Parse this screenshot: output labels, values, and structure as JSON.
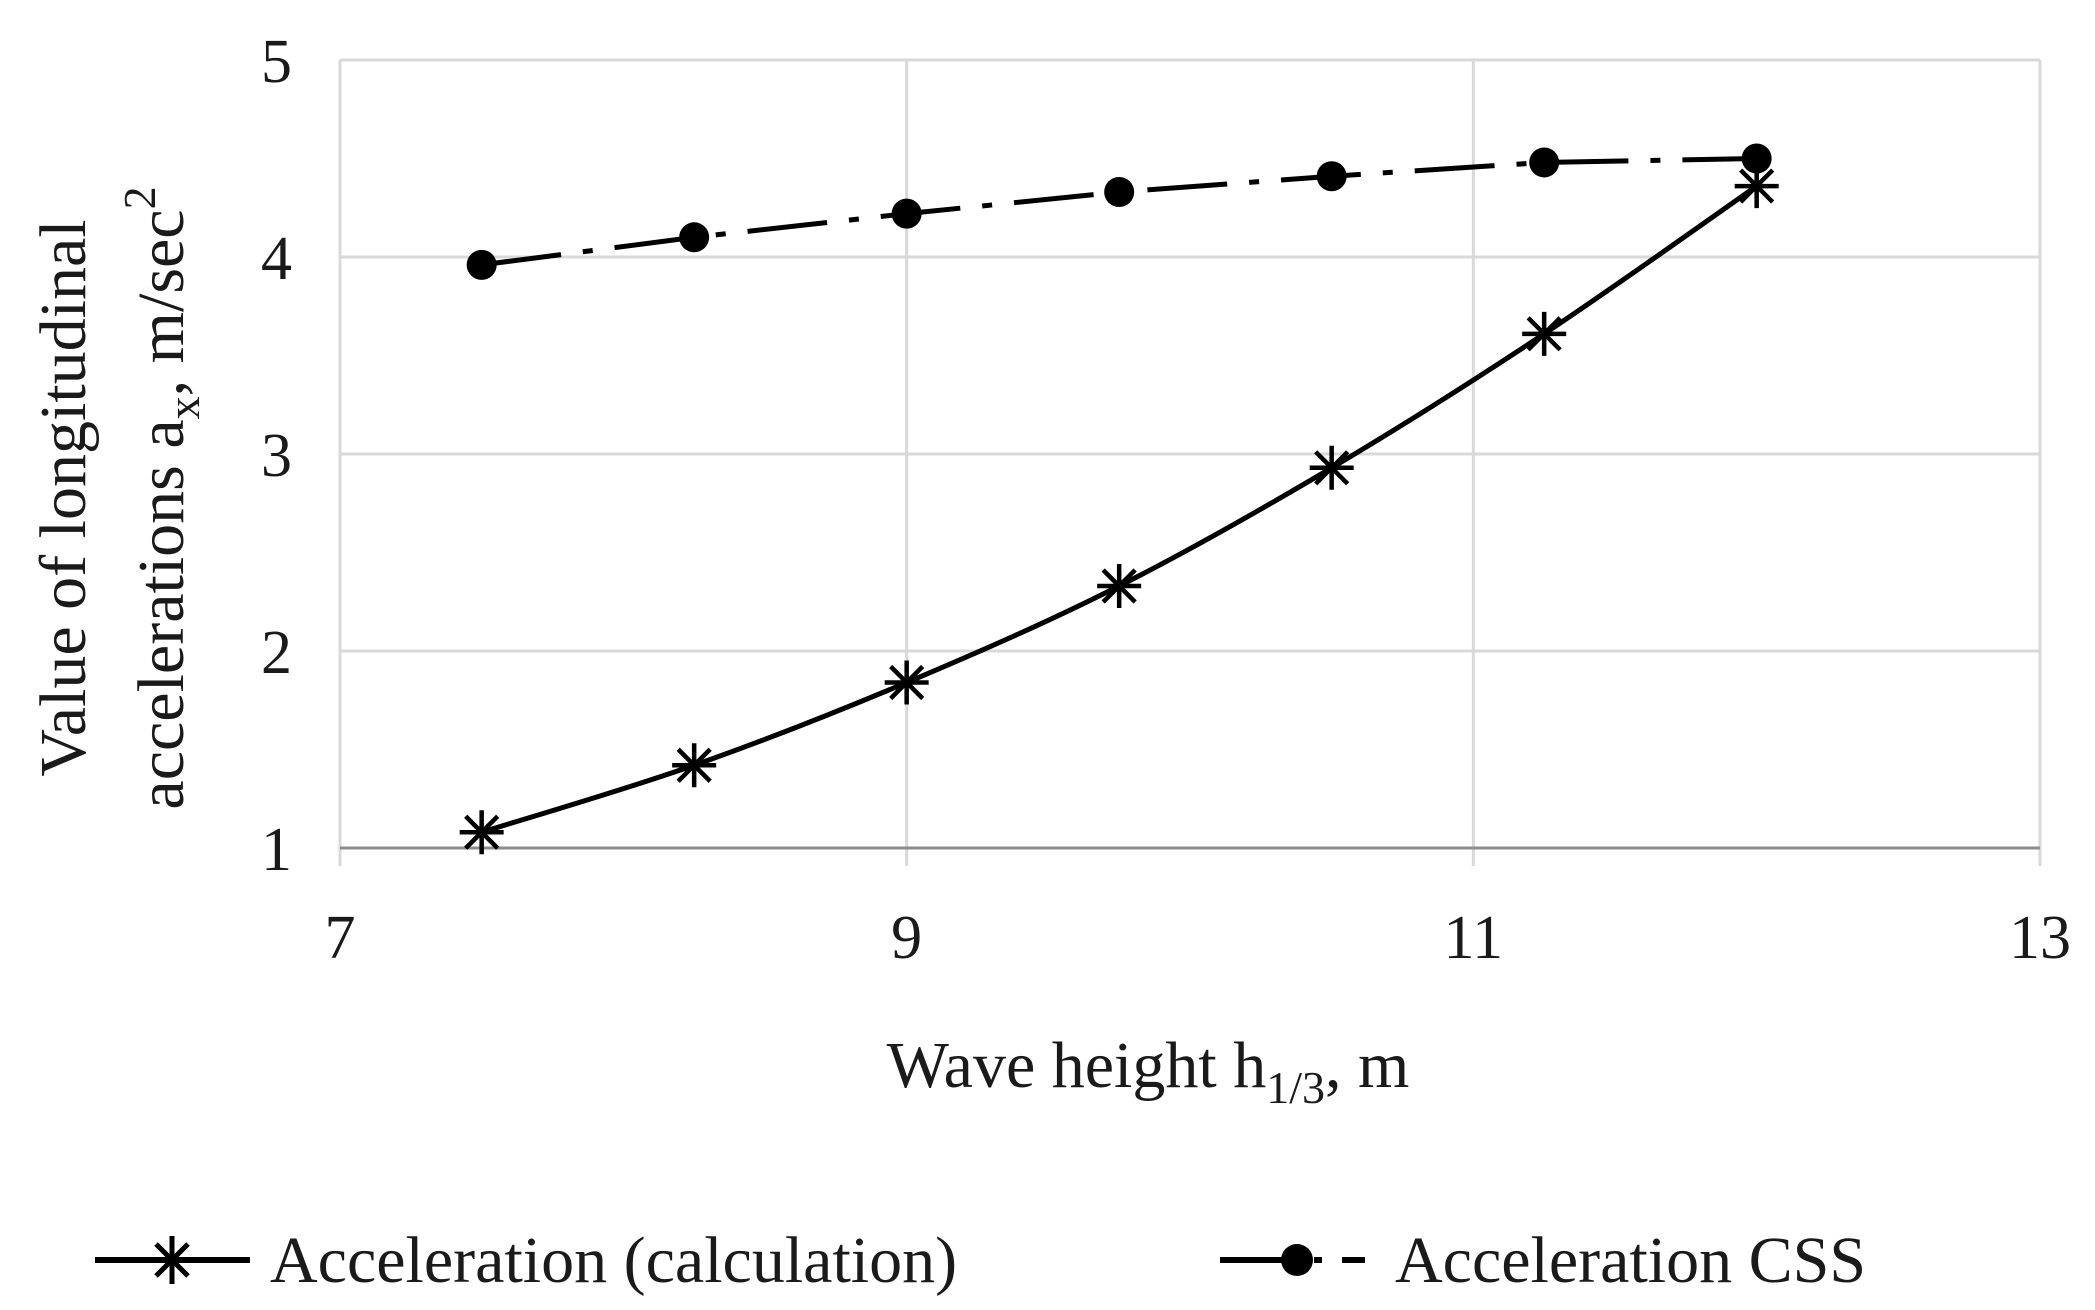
{
  "chart_data": {
    "type": "line",
    "title": "",
    "xlabel": {
      "main": "Wave height h",
      "sub": "1/3",
      "suffix": ", m"
    },
    "ylabel": {
      "line1": "Value of longitudinal",
      "line2_prefix": "accelerations a",
      "line2_sub": "x",
      "line2_mid": ", m/sec",
      "line2_sup": "2"
    },
    "xlim": [
      7,
      13
    ],
    "ylim": [
      1,
      5
    ],
    "xticks": [
      7,
      9,
      11,
      13
    ],
    "yticks": [
      1,
      2,
      3,
      4,
      5
    ],
    "grid": true,
    "legend_position": "bottom",
    "series": [
      {
        "name": "Acceleration (calculation)",
        "marker": "asterisk",
        "line_style": "solid",
        "smooth": true,
        "color": "#000000",
        "x": [
          7.5,
          8.25,
          9.0,
          9.75,
          10.5,
          11.25,
          12.0
        ],
        "y": [
          1.08,
          1.42,
          1.84,
          2.33,
          2.93,
          3.61,
          4.36
        ]
      },
      {
        "name": "Acceleration CSS",
        "marker": "circle",
        "line_style": "dash-dot",
        "smooth": false,
        "color": "#000000",
        "x": [
          7.5,
          8.25,
          9.0,
          9.75,
          10.5,
          11.25,
          12.0
        ],
        "y": [
          3.96,
          4.1,
          4.22,
          4.33,
          4.41,
          4.48,
          4.5
        ]
      }
    ]
  }
}
